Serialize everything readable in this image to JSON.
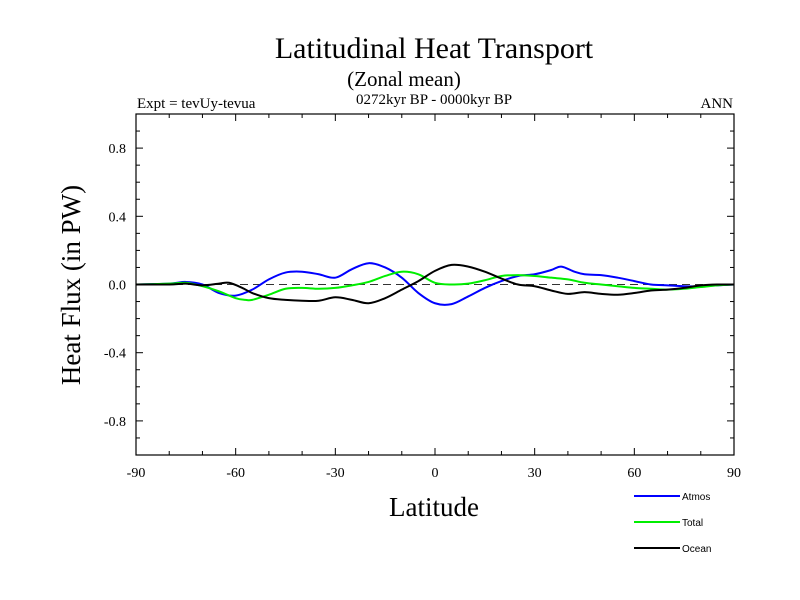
{
  "chart_data": {
    "type": "line",
    "title": "Latitudinal Heat Transport",
    "subtitle": "(Zonal mean)",
    "left_label": "Expt = tevUy-tevua",
    "center_label": "0272kyr BP - 0000kyr BP",
    "right_label": "ANN",
    "xlabel": "Latitude",
    "ylabel": "Heat Flux (in PW)",
    "xlim": [
      -90,
      90
    ],
    "ylim": [
      -1.0,
      1.0
    ],
    "xticks": [
      -90,
      -60,
      -30,
      0,
      30,
      60,
      90
    ],
    "xtick_labels": [
      "-90",
      "-60",
      "-30",
      "0",
      "30",
      "60",
      "90"
    ],
    "yticks": [
      -0.8,
      -0.4,
      0.0,
      0.4,
      0.8
    ],
    "ytick_labels": [
      "-0.8",
      "-0.4",
      "0.0",
      "0.4",
      "0.8"
    ],
    "zero_line": "dashed",
    "grid": false,
    "legend_position": "bottom-right",
    "series": [
      {
        "name": "Atmos",
        "color": "#0000ff",
        "x": [
          -90,
          -80,
          -75,
          -70,
          -65,
          -60,
          -55,
          -50,
          -45,
          -40,
          -35,
          -30,
          -25,
          -20,
          -15,
          -10,
          -5,
          0,
          5,
          10,
          15,
          20,
          25,
          30,
          35,
          38,
          42,
          45,
          50,
          55,
          60,
          65,
          70,
          75,
          80,
          85,
          90
        ],
        "y": [
          0.0,
          0.005,
          0.015,
          0.0,
          -0.05,
          -0.065,
          -0.03,
          0.03,
          0.07,
          0.075,
          0.06,
          0.04,
          0.09,
          0.125,
          0.1,
          0.04,
          -0.05,
          -0.11,
          -0.115,
          -0.07,
          -0.02,
          0.02,
          0.05,
          0.06,
          0.085,
          0.105,
          0.075,
          0.06,
          0.055,
          0.04,
          0.02,
          0.0,
          -0.005,
          -0.01,
          -0.01,
          -0.005,
          0.0
        ]
      },
      {
        "name": "Total",
        "color": "#00ee00",
        "x": [
          -90,
          -80,
          -75,
          -70,
          -65,
          -60,
          -57,
          -55,
          -50,
          -45,
          -40,
          -35,
          -30,
          -25,
          -20,
          -15,
          -10,
          -5,
          0,
          5,
          10,
          15,
          20,
          25,
          30,
          35,
          40,
          45,
          50,
          55,
          60,
          65,
          70,
          75,
          80,
          85,
          90
        ],
        "y": [
          0.0,
          0.005,
          0.01,
          -0.01,
          -0.04,
          -0.08,
          -0.09,
          -0.09,
          -0.06,
          -0.025,
          -0.02,
          -0.025,
          -0.02,
          -0.005,
          0.015,
          0.05,
          0.075,
          0.06,
          0.01,
          0.0,
          0.005,
          0.025,
          0.05,
          0.055,
          0.05,
          0.04,
          0.03,
          0.01,
          0.0,
          -0.01,
          -0.02,
          -0.025,
          -0.03,
          -0.025,
          -0.015,
          -0.005,
          0.0
        ]
      },
      {
        "name": "Ocean",
        "color": "#000000",
        "x": [
          -90,
          -80,
          -75,
          -70,
          -65,
          -62,
          -58,
          -55,
          -50,
          -45,
          -40,
          -35,
          -30,
          -25,
          -20,
          -15,
          -10,
          -5,
          0,
          5,
          10,
          15,
          20,
          25,
          30,
          35,
          40,
          45,
          50,
          55,
          60,
          65,
          70,
          75,
          80,
          85,
          90
        ],
        "y": [
          0.0,
          0.0,
          0.005,
          -0.005,
          0.005,
          0.01,
          -0.02,
          -0.05,
          -0.08,
          -0.09,
          -0.095,
          -0.095,
          -0.075,
          -0.09,
          -0.11,
          -0.08,
          -0.03,
          0.02,
          0.08,
          0.115,
          0.105,
          0.075,
          0.035,
          0.0,
          -0.01,
          -0.035,
          -0.055,
          -0.045,
          -0.055,
          -0.06,
          -0.05,
          -0.035,
          -0.03,
          -0.02,
          -0.005,
          0.0,
          0.0
        ]
      }
    ]
  }
}
